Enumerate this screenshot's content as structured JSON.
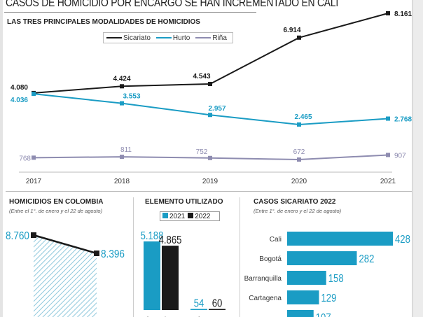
{
  "header": {
    "title": "CASOS DE HOMICIDIO POR ENCARGO SE HAN INCREMENTADO EN CALI",
    "subtitle": "LAS TRES PRINCIPALES MODALIDADES DE HOMICIDIOS"
  },
  "colors": {
    "sicariato": "#1a1a1a",
    "hurto": "#1a9cc4",
    "rina": "#8e8cb0",
    "bar_blue": "#1a9cc4",
    "bar_black": "#1a1a1a"
  },
  "chart_data": [
    {
      "type": "line",
      "title": "LAS TRES PRINCIPALES MODALIDADES DE HOMICIDIOS",
      "x": [
        "2017",
        "2018",
        "2019",
        "2020",
        "2021"
      ],
      "series": [
        {
          "name": "Sicariato",
          "values": [
            4080,
            4424,
            4543,
            6914,
            8161
          ],
          "labels": [
            "4.080",
            "4.424",
            "4.543",
            "6.914",
            "8.161"
          ]
        },
        {
          "name": "Hurto",
          "values": [
            4036,
            3553,
            2957,
            2465,
            2768
          ],
          "labels": [
            "4.036",
            "3.553",
            "2.957",
            "2.465",
            "2.768"
          ]
        },
        {
          "name": "Riña",
          "values": [
            768,
            811,
            752,
            672,
            907
          ],
          "labels": [
            "768",
            "811",
            "752",
            "672",
            "907"
          ]
        }
      ],
      "legend": "top-center",
      "grid": false,
      "xlabel": "",
      "ylabel": ""
    },
    {
      "type": "area",
      "title": "HOMICIDIOS EN COLOMBIA",
      "subtitle": "(Entre el 1°. de enero y el 22 de agosto)",
      "series": [
        {
          "name": "Homicidios",
          "values": [
            8760,
            8396
          ],
          "labels": [
            "8.760",
            "8.396"
          ]
        }
      ]
    },
    {
      "type": "bar",
      "title": "ELEMENTO UTILIZADO",
      "categories": [
        "Arma de ...",
        "Arma ..."
      ],
      "series": [
        {
          "name": "2021",
          "values": [
            5188,
            54
          ],
          "labels": [
            "5.188",
            "54"
          ]
        },
        {
          "name": "2022",
          "values": [
            4865,
            60
          ],
          "labels": [
            "4.865",
            "60"
          ]
        }
      ],
      "legend": "top"
    },
    {
      "type": "bar",
      "orientation": "horizontal",
      "title": "CASOS SICARIATO 2022",
      "subtitle": "(Entre 1°. de enero y el 22 de agosto)",
      "categories": [
        "Cali",
        "Bogotá",
        "Barranquilla",
        "Cartagena",
        ""
      ],
      "values": [
        428,
        282,
        158,
        129,
        107
      ]
    }
  ]
}
